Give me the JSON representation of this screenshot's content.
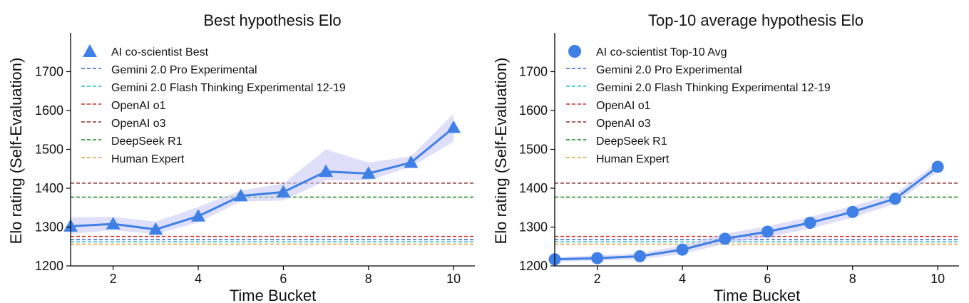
{
  "chart_data": [
    {
      "type": "line",
      "title": "Best hypothesis Elo",
      "xlabel": "Time Bucket",
      "ylabel": "Elo rating (Self-Evaluation)",
      "xlim": [
        1,
        10.5
      ],
      "ylim": [
        1200,
        1800
      ],
      "xticks": [
        2,
        4,
        6,
        8,
        10
      ],
      "yticks": [
        1200,
        1300,
        1400,
        1500,
        1600,
        1700
      ],
      "series": [
        {
          "name": "AI co-scientist Best",
          "marker": "triangle",
          "color": "#3f80e6",
          "x": [
            1,
            2,
            3,
            4,
            5,
            6,
            7,
            8,
            9,
            10
          ],
          "values": [
            1302,
            1308,
            1294,
            1328,
            1380,
            1390,
            1443,
            1438,
            1466,
            1556
          ],
          "band_low": [
            1282,
            1292,
            1282,
            1312,
            1366,
            1368,
            1420,
            1420,
            1455,
            1520
          ],
          "band_high": [
            1325,
            1326,
            1314,
            1352,
            1394,
            1412,
            1500,
            1466,
            1482,
            1592
          ]
        }
      ],
      "baselines": [
        {
          "name": "Gemini 2.0 Pro Experimental",
          "value": 1268,
          "color": "#3a5fcd"
        },
        {
          "name": "Gemini 2.0 Flash Thinking Experimental 12-19",
          "value": 1262,
          "color": "#17becf"
        },
        {
          "name": "OpenAI o1",
          "value": 1276,
          "color": "#d62728"
        },
        {
          "name": "OpenAI o3",
          "value": 1413,
          "color": "#8b2e2e"
        },
        {
          "name": "DeepSeek R1",
          "value": 1377,
          "color": "#118811"
        },
        {
          "name": "Human Expert",
          "value": 1256,
          "color": "#e0a030"
        }
      ]
    },
    {
      "type": "line",
      "title": "Top-10 average hypothesis Elo",
      "xlabel": "Time Bucket",
      "ylabel": "Elo rating (Self-Evaluation)",
      "xlim": [
        1,
        10.5
      ],
      "ylim": [
        1200,
        1800
      ],
      "xticks": [
        2,
        4,
        6,
        8,
        10
      ],
      "yticks": [
        1200,
        1300,
        1400,
        1500,
        1600,
        1700
      ],
      "series": [
        {
          "name": "AI co-scientist Top-10 Avg",
          "marker": "circle",
          "color": "#3f80e6",
          "x": [
            1,
            2,
            3,
            4,
            5,
            6,
            7,
            8,
            9,
            10
          ],
          "values": [
            1217,
            1220,
            1225,
            1242,
            1270,
            1288,
            1311,
            1339,
            1373,
            1455
          ],
          "band_low": [
            1211,
            1213,
            1217,
            1231,
            1257,
            1274,
            1296,
            1324,
            1360,
            1443
          ],
          "band_high": [
            1223,
            1227,
            1233,
            1253,
            1283,
            1302,
            1326,
            1354,
            1386,
            1467
          ]
        }
      ],
      "baselines": [
        {
          "name": "Gemini 2.0 Pro Experimental",
          "value": 1268,
          "color": "#3a5fcd"
        },
        {
          "name": "Gemini 2.0 Flash Thinking Experimental 12-19",
          "value": 1262,
          "color": "#17becf"
        },
        {
          "name": "OpenAI o1",
          "value": 1276,
          "color": "#d62728"
        },
        {
          "name": "OpenAI o3",
          "value": 1413,
          "color": "#8b2e2e"
        },
        {
          "name": "DeepSeek R1",
          "value": 1377,
          "color": "#118811"
        },
        {
          "name": "Human Expert",
          "value": 1256,
          "color": "#e0a030"
        }
      ]
    }
  ]
}
